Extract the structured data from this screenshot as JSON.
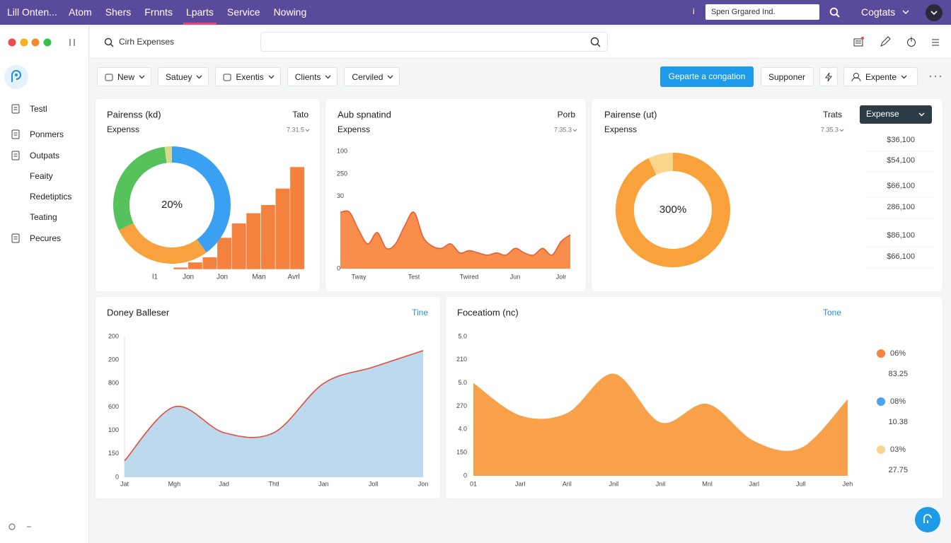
{
  "topbar": {
    "brand": "Lill Onten...",
    "nav": [
      "Atom",
      "Shers",
      "Frnnts",
      "Lparts",
      "Service",
      "Nowing"
    ],
    "info": "i",
    "search": "Spen Grgared Ind.",
    "user": "Cogtats"
  },
  "header": {
    "search": "Cirh Expenses"
  },
  "sidebar": [
    "Testl",
    "Ponmers",
    "Outpats",
    "Feaity",
    "Redetiptics",
    "Teating",
    "Pecures"
  ],
  "toolbar": {
    "filters": [
      "New",
      "Satuey",
      "Exentis",
      "Clients",
      "Cerviled"
    ],
    "primary": "Geparte a congation",
    "secondary": "Supponer",
    "view": "Expente"
  },
  "chart_data": [
    {
      "type": "donut-bars",
      "title": "Pairenss (kd)",
      "link": "Tato",
      "subtitle": "Expenss",
      "meta": "7.31.5",
      "center_label": "20%",
      "slices": [
        {
          "color": "#3aa0f2",
          "value": 40
        },
        {
          "color": "#f7a23e",
          "value": 28
        },
        {
          "color": "#55c25c",
          "value": 30
        },
        {
          "color": "#d9d98a",
          "value": 2
        }
      ],
      "bar_color": "#f5813e",
      "bar_values": [
        2,
        7,
        12,
        31,
        45,
        55,
        63,
        79,
        100
      ],
      "x_labels": [
        "l1",
        "Jon",
        "Jon",
        "Man",
        "Avrl"
      ]
    },
    {
      "type": "area",
      "title": "Aub spnatind",
      "link": "Porb",
      "subtitle": "Expenss",
      "meta": "7.35.3",
      "categories": [
        null,
        null,
        "Tway",
        null,
        null,
        null,
        null,
        null,
        "Test",
        null,
        null,
        null,
        null,
        null,
        "Twired",
        null,
        null,
        null,
        null,
        "Jun",
        null,
        null,
        null,
        null,
        "Jolr",
        null
      ],
      "series": [
        {
          "color": "#f98d4b",
          "line_color": "#e5603b",
          "values": [
            2.5,
            2.5,
            1.7,
            1.1,
            1.6,
            0.9,
            1.1,
            1.9,
            2.5,
            1.4,
            1.0,
            0.9,
            1.1,
            0.7,
            0.8,
            0.7,
            0.6,
            0.7,
            0.6,
            0.9,
            0.7,
            0.6,
            0.9,
            0.6,
            1.2,
            1.5
          ]
        }
      ],
      "ylim": [
        0,
        5.2
      ],
      "yticks": [
        0,
        {
          "value": 3.2,
          "label": "30"
        },
        {
          "value": 4.2,
          "label": "250"
        },
        {
          "value": 5.2,
          "label": "100"
        }
      ],
      "smooth": true
    },
    {
      "type": "donut",
      "title": "Pairense (ut)",
      "link": "Trats",
      "subtitle": "Expenss",
      "meta": "7.35.3",
      "center_label": "300%",
      "slices": [
        {
          "color": "#f9a13b",
          "value": 93
        },
        {
          "color": "#fcd68e",
          "value": 7
        }
      ],
      "button": "Expense",
      "list": [
        "$36,100",
        "$54,100",
        "$66,100",
        "286,100",
        "$86,100",
        "$66,100"
      ]
    },
    {
      "type": "area",
      "title": "Doney Balleser",
      "link": "Tine",
      "categories": [
        "Jat",
        "Mgh",
        "Jad",
        "Thtl",
        "Jan",
        "Joll",
        "Jon"
      ],
      "series": [
        {
          "color": "#bcd9ed",
          "line_color": "#e84a3d",
          "values": [
            0.7,
            3.0,
            1.9,
            1.9,
            4.0,
            4.7,
            5.4
          ]
        }
      ],
      "ylim": [
        0,
        6
      ],
      "yticks": [
        0,
        {
          "value": 1,
          "label": "150"
        },
        {
          "value": 2,
          "label": "100"
        },
        {
          "value": 3,
          "label": "600"
        },
        {
          "value": 4,
          "label": "800"
        },
        {
          "value": 5,
          "label": "200"
        },
        {
          "value": 6,
          "label": "200"
        }
      ],
      "smooth": true
    },
    {
      "type": "area",
      "title": "Foceatiom (nc)",
      "link": "Tone",
      "categories": [
        "01",
        "Jarl",
        "Aril",
        "Jnil",
        "Jnil",
        "Mnl",
        "Jarl",
        "Jull",
        "Jeh"
      ],
      "series": [
        {
          "color": "#f9a04a",
          "values": [
            4.0,
            2.6,
            2.7,
            4.4,
            2.3,
            3.1,
            1.5,
            1.2,
            3.3
          ]
        }
      ],
      "ylim": [
        0,
        6
      ],
      "yticks": [
        0,
        {
          "value": 1,
          "label": "150"
        },
        {
          "value": 2,
          "label": "4.0"
        },
        {
          "value": 3,
          "label": "270"
        },
        {
          "value": 4,
          "label": "5.0"
        },
        {
          "value": 5,
          "label": "210"
        },
        {
          "value": 6,
          "label": "5.0"
        }
      ],
      "smooth": true,
      "legend": [
        {
          "color": "#f5823e",
          "label": "06%",
          "amount": "83.25"
        },
        {
          "color": "#4aa3ea",
          "label": "08%",
          "amount": "10.38"
        },
        {
          "color": "#f7d58f",
          "label": "03%",
          "amount": "27.75"
        }
      ]
    }
  ]
}
